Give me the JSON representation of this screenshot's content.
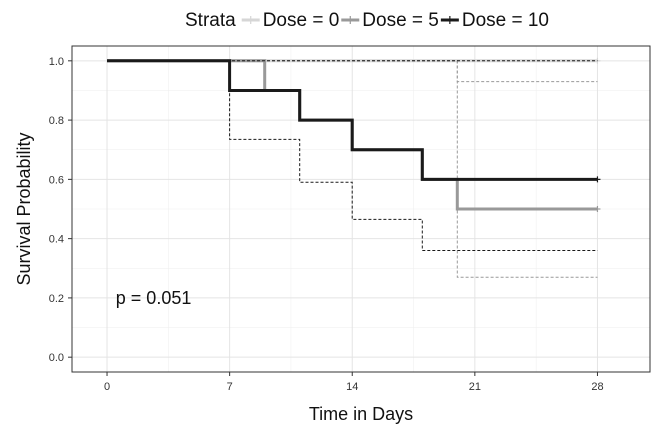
{
  "chart_data": {
    "type": "line",
    "subtype": "kaplan-meier-step",
    "xlabel": "Time in Days",
    "ylabel": "Survival Probability",
    "xlim": [
      -2,
      31
    ],
    "ylim": [
      -0.05,
      1.05
    ],
    "xticks": [
      0,
      7,
      14,
      21,
      28
    ],
    "yticks": [
      0.0,
      0.2,
      0.4,
      0.6,
      0.8,
      1.0
    ],
    "ytick_labels": [
      "0.0",
      "0.2",
      "0.4",
      "0.6",
      "0.8",
      "1.0"
    ],
    "grid": true,
    "legend": {
      "title": "Strata",
      "position": "top",
      "entries": [
        "Dose = 0",
        "Dose = 5",
        "Dose = 10"
      ]
    },
    "annotation": "p = 0.051",
    "annotation_pos": {
      "x": 0.5,
      "y": 0.2
    },
    "series": [
      {
        "name": "Dose = 0",
        "color": "#d6d6d6",
        "steps": [
          [
            0,
            1.0
          ],
          [
            28,
            1.0
          ]
        ],
        "censor": [
          [
            28,
            1.0
          ]
        ],
        "ci": null
      },
      {
        "name": "Dose = 5",
        "color": "#999999",
        "steps": [
          [
            0,
            1.0
          ],
          [
            9,
            1.0
          ],
          [
            9,
            0.9
          ],
          [
            11,
            0.9
          ],
          [
            11,
            0.8
          ],
          [
            14,
            0.8
          ],
          [
            14,
            0.7
          ],
          [
            18,
            0.7
          ],
          [
            18,
            0.6
          ],
          [
            20,
            0.6
          ],
          [
            20,
            0.5
          ],
          [
            28,
            0.5
          ]
        ],
        "censor": [
          [
            28,
            0.5
          ]
        ],
        "ci": {
          "upper": [
            [
              0,
              1.0
            ],
            [
              20,
              1.0
            ],
            [
              20,
              0.93
            ],
            [
              28,
              0.93
            ]
          ],
          "lower": [
            [
              0,
              1.0
            ],
            [
              20,
              1.0
            ],
            [
              20,
              0.27
            ],
            [
              28,
              0.27
            ]
          ]
        }
      },
      {
        "name": "Dose = 10",
        "color": "#1a1a1a",
        "steps": [
          [
            0,
            1.0
          ],
          [
            7,
            1.0
          ],
          [
            7,
            0.9
          ],
          [
            11,
            0.9
          ],
          [
            11,
            0.8
          ],
          [
            14,
            0.8
          ],
          [
            14,
            0.7
          ],
          [
            18,
            0.7
          ],
          [
            18,
            0.6
          ],
          [
            28,
            0.6
          ]
        ],
        "censor": [
          [
            28,
            0.6
          ]
        ],
        "ci": {
          "upper": [
            [
              0,
              1.0
            ],
            [
              28,
              1.0
            ]
          ],
          "lower": [
            [
              0,
              1.0
            ],
            [
              7,
              1.0
            ],
            [
              7,
              0.735
            ],
            [
              11,
              0.735
            ],
            [
              11,
              0.59
            ],
            [
              14,
              0.59
            ],
            [
              14,
              0.465
            ],
            [
              18,
              0.465
            ],
            [
              18,
              0.36
            ],
            [
              28,
              0.36
            ]
          ]
        }
      }
    ]
  }
}
